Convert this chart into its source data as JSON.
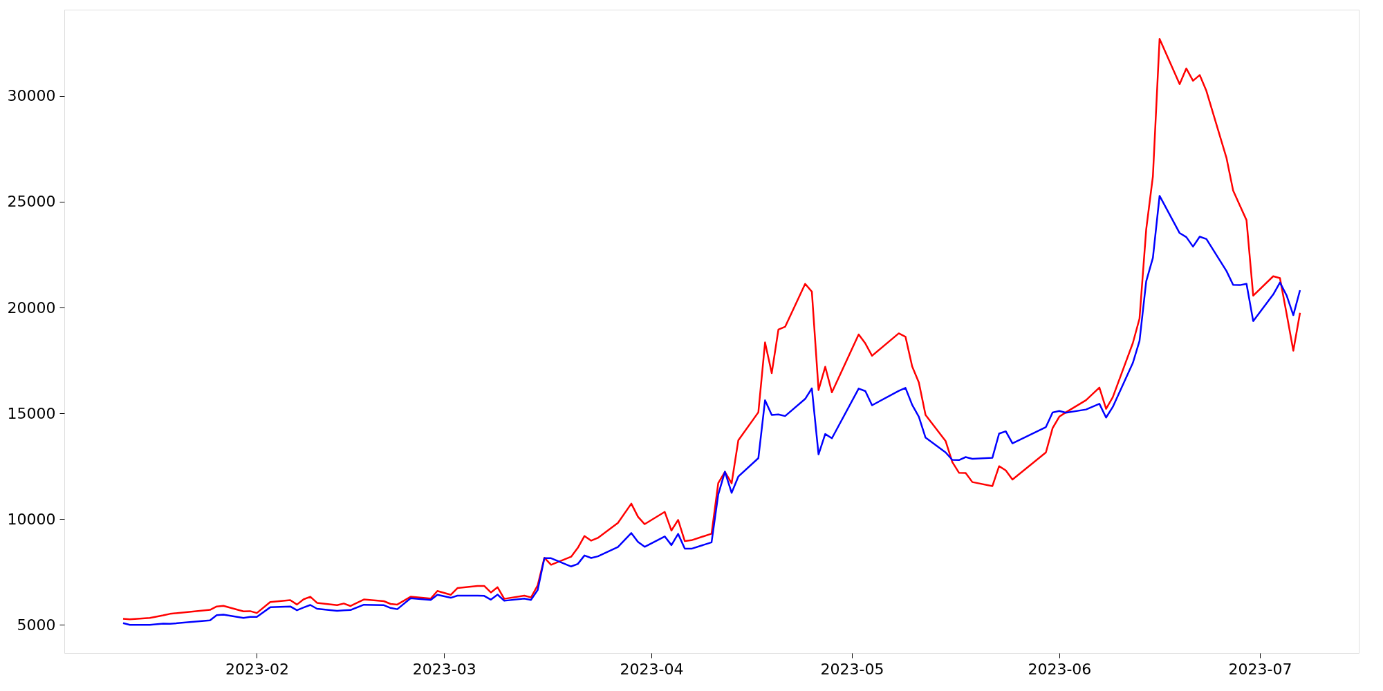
{
  "chart_data": {
    "type": "line",
    "x": [
      "2023-01-12",
      "2023-01-13",
      "2023-01-16",
      "2023-01-18",
      "2023-01-19",
      "2023-01-25",
      "2023-01-26",
      "2023-01-27",
      "2023-01-30",
      "2023-01-31",
      "2023-02-01",
      "2023-02-03",
      "2023-02-06",
      "2023-02-07",
      "2023-02-08",
      "2023-02-09",
      "2023-02-10",
      "2023-02-13",
      "2023-02-14",
      "2023-02-15",
      "2023-02-17",
      "2023-02-20",
      "2023-02-21",
      "2023-02-22",
      "2023-02-24",
      "2023-02-27",
      "2023-02-28",
      "2023-03-02",
      "2023-03-03",
      "2023-03-06",
      "2023-03-07",
      "2023-03-08",
      "2023-03-09",
      "2023-03-10",
      "2023-03-13",
      "2023-03-14",
      "2023-03-15",
      "2023-03-16",
      "2023-03-17",
      "2023-03-20",
      "2023-03-21",
      "2023-03-22",
      "2023-03-23",
      "2023-03-24",
      "2023-03-27",
      "2023-03-29",
      "2023-03-30",
      "2023-03-31",
      "2023-04-03",
      "2023-04-04",
      "2023-04-05",
      "2023-04-06",
      "2023-04-07",
      "2023-04-10",
      "2023-04-11",
      "2023-04-12",
      "2023-04-13",
      "2023-04-14",
      "2023-04-17",
      "2023-04-18",
      "2023-04-19",
      "2023-04-20",
      "2023-04-21",
      "2023-04-24",
      "2023-04-25",
      "2023-04-26",
      "2023-04-27",
      "2023-04-28",
      "2023-05-02",
      "2023-05-03",
      "2023-05-04",
      "2023-05-08",
      "2023-05-09",
      "2023-05-10",
      "2023-05-11",
      "2023-05-12",
      "2023-05-15",
      "2023-05-16",
      "2023-05-17",
      "2023-05-18",
      "2023-05-19",
      "2023-05-22",
      "2023-05-23",
      "2023-05-24",
      "2023-05-25",
      "2023-05-30",
      "2023-05-31",
      "2023-06-01",
      "2023-06-02",
      "2023-06-05",
      "2023-06-07",
      "2023-06-08",
      "2023-06-09",
      "2023-06-12",
      "2023-06-13",
      "2023-06-14",
      "2023-06-15",
      "2023-06-16",
      "2023-06-19",
      "2023-06-20",
      "2023-06-21",
      "2023-06-22",
      "2023-06-23",
      "2023-06-26",
      "2023-06-27",
      "2023-06-28",
      "2023-06-29",
      "2023-06-30",
      "2023-07-03",
      "2023-07-04",
      "2023-07-05",
      "2023-07-06",
      "2023-07-07"
    ],
    "series": [
      {
        "color": "#ff0000",
        "values": [
          5290,
          5260,
          5330,
          5450,
          5520,
          5710,
          5870,
          5900,
          5640,
          5650,
          5560,
          6080,
          6170,
          5960,
          6210,
          6330,
          6040,
          5930,
          6010,
          5890,
          6200,
          6120,
          5990,
          5960,
          6330,
          6240,
          6600,
          6420,
          6740,
          6840,
          6840,
          6530,
          6780,
          6230,
          6380,
          6300,
          6870,
          8170,
          7840,
          8220,
          8640,
          9200,
          8980,
          9110,
          9820,
          10730,
          10110,
          9760,
          10340,
          9460,
          9960,
          8960,
          9000,
          9310,
          11700,
          12230,
          11690,
          13720,
          15050,
          18350,
          16900,
          18960,
          19090,
          21120,
          20750,
          16100,
          17200,
          15990,
          18730,
          18300,
          17720,
          18780,
          18620,
          17220,
          16460,
          14920,
          13690,
          12700,
          12190,
          12180,
          11750,
          11560,
          12500,
          12300,
          11870,
          13150,
          14300,
          14840,
          15050,
          15620,
          16220,
          15210,
          15760,
          18320,
          19480,
          23700,
          26200,
          32700,
          30560,
          31300,
          30720,
          30990,
          30240,
          27080,
          25530,
          24830,
          24130,
          20560,
          21480,
          21390,
          19700,
          17960,
          19750
        ]
      },
      {
        "color": "#0000ff",
        "values": [
          5080,
          5000,
          5000,
          5060,
          5050,
          5210,
          5460,
          5480,
          5330,
          5380,
          5380,
          5830,
          5870,
          5690,
          5820,
          5940,
          5760,
          5660,
          5690,
          5700,
          5950,
          5930,
          5800,
          5740,
          6260,
          6180,
          6420,
          6280,
          6380,
          6380,
          6370,
          6190,
          6430,
          6140,
          6240,
          6180,
          6650,
          8150,
          8150,
          7760,
          7880,
          8280,
          8160,
          8240,
          8680,
          9340,
          8920,
          8690,
          9180,
          8770,
          9300,
          8600,
          8600,
          8900,
          11160,
          12240,
          11240,
          12010,
          12880,
          15620,
          14920,
          14950,
          14870,
          15680,
          16180,
          13060,
          14020,
          13820,
          16170,
          16050,
          15380,
          16060,
          16200,
          15400,
          14840,
          13850,
          13150,
          12800,
          12790,
          12930,
          12850,
          12900,
          14040,
          14150,
          13580,
          14350,
          15040,
          15110,
          15030,
          15180,
          15450,
          14800,
          15300,
          17380,
          18420,
          21240,
          22350,
          25280,
          23520,
          23330,
          22880,
          23350,
          23240,
          21730,
          21070,
          21060,
          21120,
          19360,
          20620,
          21180,
          20570,
          19640,
          20820
        ]
      }
    ],
    "xlim": [
      "2023-01-03T05:00",
      "2023-07-15T19:00"
    ],
    "xticks": [
      {
        "value": "2023-02-01",
        "label": "2023-02"
      },
      {
        "value": "2023-03-01",
        "label": "2023-03"
      },
      {
        "value": "2023-04-01",
        "label": "2023-04"
      },
      {
        "value": "2023-05-01",
        "label": "2023-05"
      },
      {
        "value": "2023-06-01",
        "label": "2023-06"
      },
      {
        "value": "2023-07-01",
        "label": "2023-07"
      }
    ],
    "ylim": [
      3670,
      34080
    ],
    "yticks": [
      5000,
      10000,
      15000,
      20000,
      25000,
      30000
    ],
    "grid": false,
    "line_style": "solid"
  }
}
